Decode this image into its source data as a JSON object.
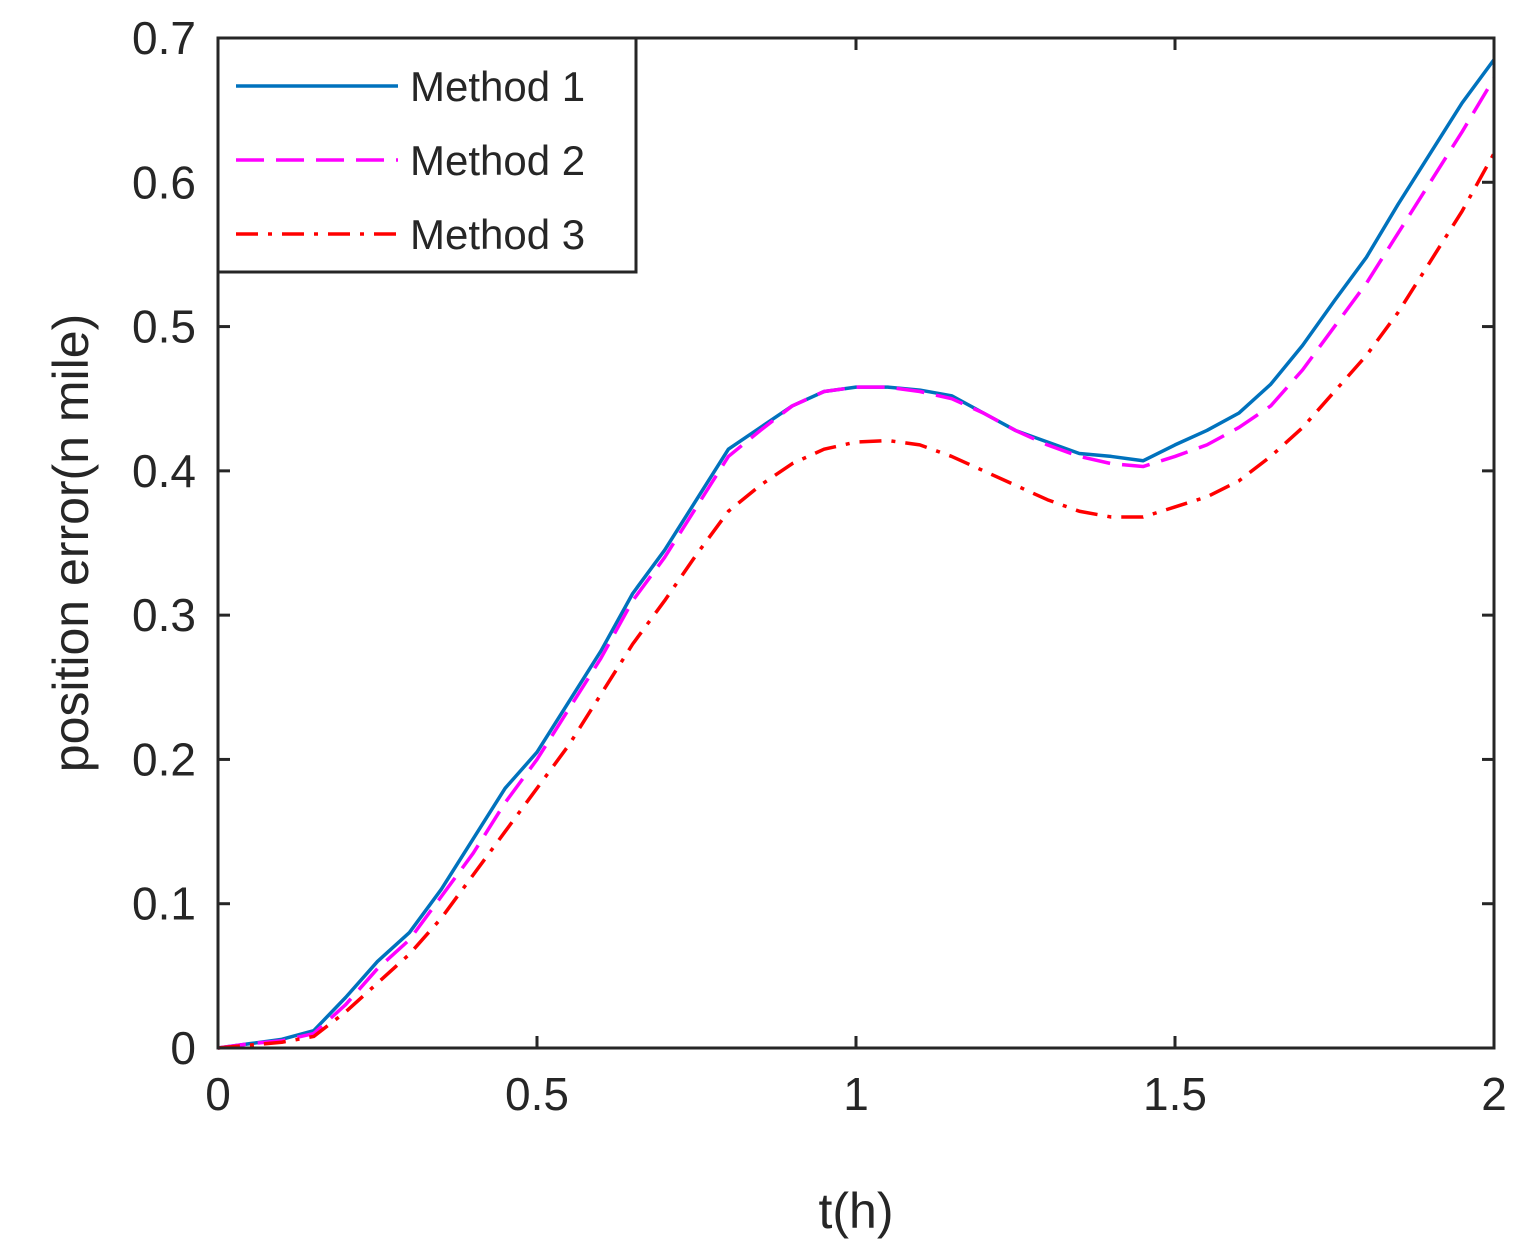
{
  "chart_data": {
    "type": "line",
    "title": "",
    "xlabel": "t(h)",
    "ylabel": "position error(n mile)",
    "xlim": [
      0,
      2
    ],
    "ylim": [
      0,
      0.7
    ],
    "xticks": [
      0,
      0.5,
      1,
      1.5,
      2
    ],
    "xtick_labels": [
      "0",
      "0.5",
      "1",
      "1.5",
      "2"
    ],
    "yticks": [
      0,
      0.1,
      0.2,
      0.3,
      0.4,
      0.5,
      0.6,
      0.7
    ],
    "ytick_labels": [
      "0",
      "0.1",
      "0.2",
      "0.3",
      "0.4",
      "0.5",
      "0.6",
      "0.7"
    ],
    "grid": false,
    "legend_position": "top-left",
    "x": [
      0,
      0.05,
      0.1,
      0.15,
      0.2,
      0.25,
      0.3,
      0.35,
      0.4,
      0.45,
      0.5,
      0.55,
      0.6,
      0.65,
      0.7,
      0.75,
      0.8,
      0.85,
      0.9,
      0.95,
      1.0,
      1.05,
      1.1,
      1.15,
      1.2,
      1.25,
      1.3,
      1.35,
      1.4,
      1.45,
      1.5,
      1.55,
      1.6,
      1.65,
      1.7,
      1.75,
      1.8,
      1.85,
      1.9,
      1.95,
      2.0
    ],
    "series": [
      {
        "name": "Method 1",
        "color": "#0072BD",
        "dash": "solid",
        "values": [
          0.0,
          0.003,
          0.006,
          0.012,
          0.035,
          0.06,
          0.08,
          0.11,
          0.145,
          0.18,
          0.205,
          0.24,
          0.275,
          0.315,
          0.345,
          0.38,
          0.415,
          0.43,
          0.445,
          0.455,
          0.458,
          0.458,
          0.456,
          0.452,
          0.44,
          0.428,
          0.42,
          0.412,
          0.41,
          0.407,
          0.418,
          0.428,
          0.44,
          0.46,
          0.487,
          0.518,
          0.548,
          0.585,
          0.62,
          0.655,
          0.685
        ]
      },
      {
        "name": "Method 2",
        "color": "#FF00FF",
        "dash": "dashed",
        "values": [
          0.0,
          0.003,
          0.005,
          0.01,
          0.03,
          0.055,
          0.075,
          0.105,
          0.135,
          0.17,
          0.2,
          0.235,
          0.27,
          0.31,
          0.34,
          0.375,
          0.41,
          0.428,
          0.445,
          0.455,
          0.458,
          0.458,
          0.455,
          0.45,
          0.44,
          0.428,
          0.418,
          0.41,
          0.405,
          0.403,
          0.41,
          0.418,
          0.43,
          0.445,
          0.47,
          0.5,
          0.53,
          0.565,
          0.6,
          0.635,
          0.672
        ]
      },
      {
        "name": "Method 3",
        "color": "#FF0000",
        "dash": "dash-dot",
        "values": [
          0.0,
          0.002,
          0.004,
          0.008,
          0.025,
          0.045,
          0.065,
          0.09,
          0.12,
          0.15,
          0.18,
          0.21,
          0.245,
          0.28,
          0.31,
          0.342,
          0.372,
          0.39,
          0.405,
          0.415,
          0.42,
          0.421,
          0.418,
          0.41,
          0.4,
          0.39,
          0.38,
          0.372,
          0.368,
          0.368,
          0.375,
          0.382,
          0.393,
          0.41,
          0.43,
          0.455,
          0.48,
          0.51,
          0.545,
          0.58,
          0.62
        ]
      }
    ]
  }
}
